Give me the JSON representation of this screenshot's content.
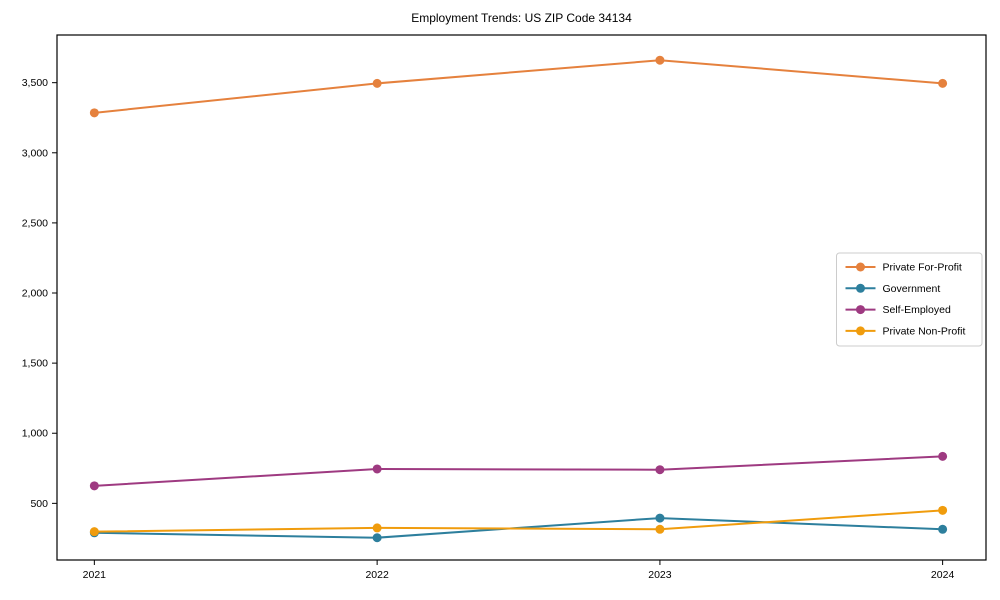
{
  "chart_data": {
    "type": "line",
    "title": "Employment Trends: US ZIP Code 34134",
    "categories": [
      "2021",
      "2022",
      "2023",
      "2024"
    ],
    "series": [
      {
        "name": "Private For-Profit",
        "color": "#E5813D",
        "values": [
          3285,
          3495,
          3660,
          3495
        ]
      },
      {
        "name": "Government",
        "color": "#2D7F9D",
        "values": [
          290,
          255,
          395,
          315
        ]
      },
      {
        "name": "Self-Employed",
        "color": "#9E3A81",
        "values": [
          625,
          745,
          740,
          835
        ]
      },
      {
        "name": "Private Non-Profit",
        "color": "#F09C0D",
        "values": [
          298,
          325,
          315,
          450
        ]
      }
    ],
    "xlabel": "",
    "ylabel": "",
    "ylim": [
      96,
      3840
    ],
    "yticks": [
      500,
      1000,
      1500,
      2000,
      2500,
      3000,
      3500
    ],
    "grid": false,
    "legend_position": "center right",
    "axis_color": "#000000",
    "legend_border_color": "#cccccc",
    "background": "#ffffff"
  }
}
